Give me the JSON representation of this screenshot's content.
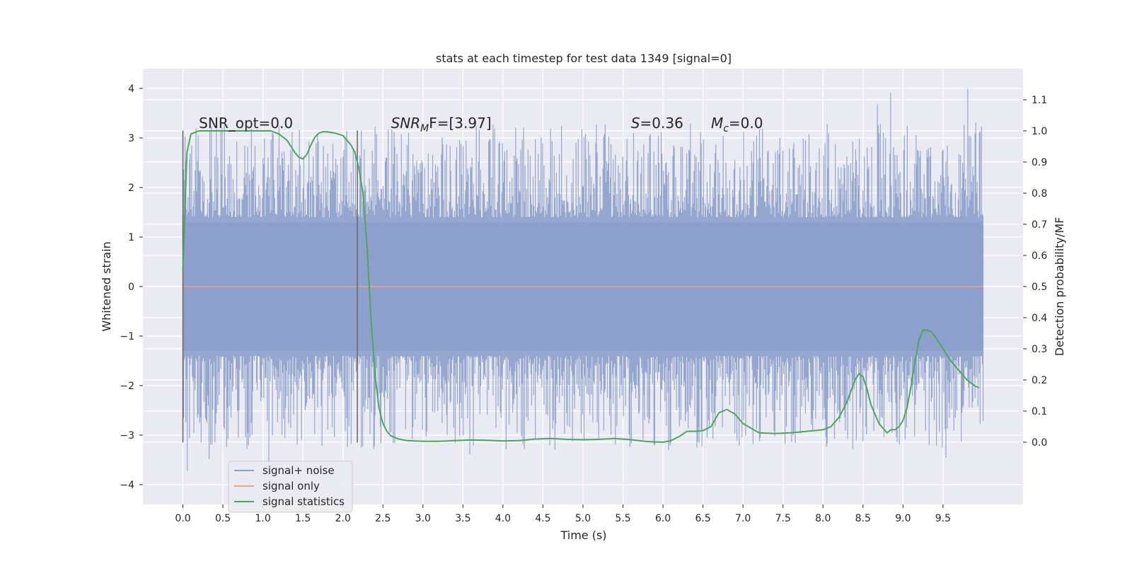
{
  "chart_data": {
    "type": "line",
    "title": "stats at each timestep for test data 1349 [signal=0]",
    "xlabel": "Time (s)",
    "ylabel": "Whitened strain",
    "y2label": "Detection probability/MF",
    "xlim": [
      -0.5,
      10.5
    ],
    "ylim": [
      -4.4,
      4.4
    ],
    "y2lim": [
      -0.2,
      1.2
    ],
    "x_ticks": [
      "0.0",
      "0.5",
      "1.0",
      "1.5",
      "2.0",
      "2.5",
      "3.0",
      "3.5",
      "4.0",
      "4.5",
      "5.0",
      "5.5",
      "6.0",
      "6.5",
      "7.0",
      "7.5",
      "8.0",
      "8.5",
      "9.0",
      "9.5"
    ],
    "y_ticks": [
      4,
      3,
      2,
      1,
      0,
      -1,
      -2,
      -3,
      -4
    ],
    "y_tick_labels": [
      "4",
      "3",
      "2",
      "1",
      "0",
      "−1",
      "−2",
      "−3",
      "−4"
    ],
    "y2_ticks": [
      1.1,
      1.0,
      0.9,
      0.8,
      0.7,
      0.6,
      0.5,
      0.4,
      0.3,
      0.2,
      0.1,
      0.0
    ],
    "y2_tick_labels": [
      "1.1",
      "1.0",
      "0.9",
      "0.8",
      "0.7",
      "0.6",
      "0.5",
      "0.4",
      "0.3",
      "0.2",
      "0.1",
      "0.0"
    ],
    "grid": true,
    "legend_position": "lower-left",
    "series": [
      {
        "name": "signal+ noise",
        "color": "#8da0cb",
        "kind": "noise",
        "x_range": [
          0.0,
          10.0
        ],
        "dense_band": [
          -1.3,
          1.3
        ],
        "peak_max": 4.0,
        "peak_min": -4.05
      },
      {
        "name": "signal only",
        "color": "#e8a68a",
        "x": [
          0.0,
          10.0
        ],
        "y": [
          0.0,
          0.0
        ]
      },
      {
        "name": "signal statistics",
        "color": "#4ea65c",
        "axis": "y2",
        "x": [
          0.0,
          0.05,
          0.1,
          0.15,
          0.2,
          0.3,
          0.4,
          0.5,
          0.6,
          0.7,
          0.8,
          0.9,
          1.0,
          1.1,
          1.2,
          1.3,
          1.4,
          1.45,
          1.5,
          1.55,
          1.6,
          1.65,
          1.7,
          1.75,
          1.8,
          1.9,
          2.0,
          2.1,
          2.15,
          2.2,
          2.25,
          2.3,
          2.35,
          2.4,
          2.45,
          2.5,
          2.55,
          2.6,
          2.7,
          2.8,
          3.0,
          3.2,
          3.4,
          3.6,
          3.8,
          4.0,
          4.2,
          4.4,
          4.6,
          4.8,
          5.0,
          5.2,
          5.4,
          5.6,
          5.8,
          6.0,
          6.1,
          6.2,
          6.3,
          6.4,
          6.5,
          6.6,
          6.7,
          6.8,
          6.9,
          7.0,
          7.2,
          7.4,
          7.6,
          7.8,
          8.0,
          8.1,
          8.2,
          8.3,
          8.4,
          8.45,
          8.5,
          8.55,
          8.6,
          8.7,
          8.8,
          8.85,
          8.9,
          8.95,
          9.0,
          9.05,
          9.1,
          9.15,
          9.2,
          9.25,
          9.3,
          9.35,
          9.4,
          9.5,
          9.6,
          9.7,
          9.8,
          9.9,
          9.95
        ],
        "y": [
          0.55,
          0.93,
          0.99,
          0.995,
          1.0,
          1.0,
          1.0,
          1.0,
          1.0,
          1.0,
          1.0,
          1.0,
          1.0,
          1.0,
          0.99,
          0.97,
          0.93,
          0.915,
          0.91,
          0.925,
          0.955,
          0.98,
          0.993,
          0.997,
          0.997,
          0.993,
          0.985,
          0.955,
          0.93,
          0.88,
          0.8,
          0.63,
          0.4,
          0.22,
          0.11,
          0.06,
          0.035,
          0.02,
          0.01,
          0.005,
          0.003,
          0.003,
          0.005,
          0.007,
          0.006,
          0.004,
          0.005,
          0.01,
          0.012,
          0.009,
          0.008,
          0.009,
          0.012,
          0.008,
          0.002,
          0.0,
          0.005,
          0.018,
          0.035,
          0.035,
          0.037,
          0.05,
          0.095,
          0.105,
          0.09,
          0.06,
          0.03,
          0.028,
          0.03,
          0.035,
          0.04,
          0.05,
          0.08,
          0.13,
          0.2,
          0.22,
          0.21,
          0.17,
          0.12,
          0.06,
          0.03,
          0.04,
          0.04,
          0.05,
          0.07,
          0.11,
          0.18,
          0.26,
          0.33,
          0.36,
          0.36,
          0.355,
          0.34,
          0.3,
          0.26,
          0.23,
          0.2,
          0.18,
          0.175
        ]
      }
    ],
    "annotations": [
      {
        "text": "SNR_opt=0.0",
        "x": 0.2,
        "y": 3.2
      },
      {
        "base": "SNR",
        "sub": "M",
        "rest": "F=[3.97]",
        "x": 2.6,
        "y": 3.2
      },
      {
        "base": "S",
        "rest": "=0.36",
        "x": 5.6,
        "y": 3.2
      },
      {
        "base": "M",
        "sub": "c",
        "rest": "=0.0",
        "x": 6.6,
        "y": 3.2
      }
    ],
    "vlines": [
      {
        "x": 0.0,
        "y_range": [
          -3.15,
          3.15
        ],
        "color": "#666666"
      },
      {
        "x": 2.18,
        "y_range": [
          -3.15,
          3.15
        ],
        "color": "#666666"
      }
    ]
  }
}
